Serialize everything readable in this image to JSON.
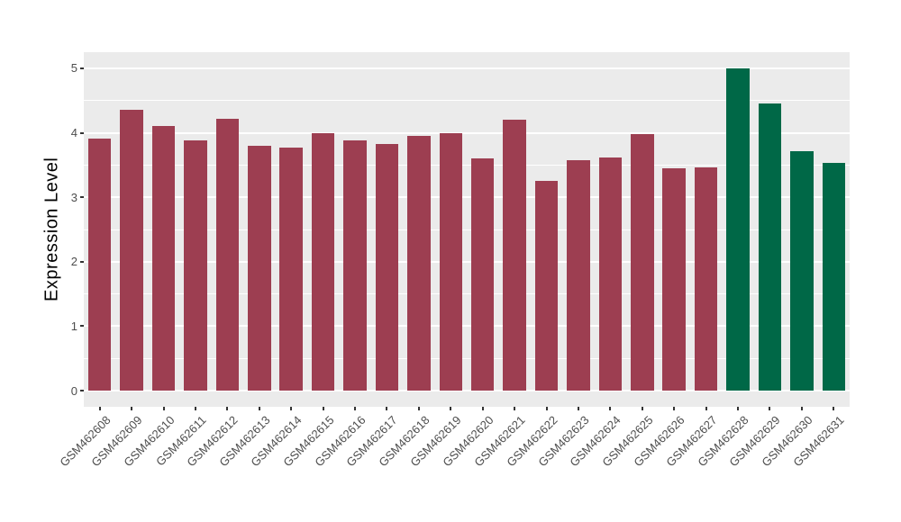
{
  "chart_data": {
    "type": "bar",
    "title": "",
    "xlabel": "",
    "ylabel": "Expression Level",
    "ylim": [
      0,
      5
    ],
    "yticks": [
      0,
      1,
      2,
      3,
      4,
      5
    ],
    "legend_position": "none",
    "grid": "white major and minor gridlines on gray panel",
    "categories": [
      "GSM462608",
      "GSM462609",
      "GSM462610",
      "GSM462611",
      "GSM462612",
      "GSM462613",
      "GSM462614",
      "GSM462615",
      "GSM462616",
      "GSM462617",
      "GSM462618",
      "GSM462619",
      "GSM462620",
      "GSM462621",
      "GSM462622",
      "GSM462623",
      "GSM462624",
      "GSM462625",
      "GSM462626",
      "GSM462627",
      "GSM462628",
      "GSM462629",
      "GSM462630",
      "GSM462631"
    ],
    "values": [
      3.91,
      4.36,
      4.11,
      3.88,
      4.22,
      3.8,
      3.77,
      3.99,
      3.88,
      3.82,
      3.95,
      4.0,
      3.6,
      4.2,
      3.25,
      3.57,
      3.62,
      3.98,
      3.45,
      3.47,
      5.0,
      4.46,
      3.71,
      3.53
    ],
    "bar_colors": [
      "#9D3E51",
      "#9D3E51",
      "#9D3E51",
      "#9D3E51",
      "#9D3E51",
      "#9D3E51",
      "#9D3E51",
      "#9D3E51",
      "#9D3E51",
      "#9D3E51",
      "#9D3E51",
      "#9D3E51",
      "#9D3E51",
      "#9D3E51",
      "#9D3E51",
      "#9D3E51",
      "#9D3E51",
      "#9D3E51",
      "#9D3E51",
      "#9D3E51",
      "#006847",
      "#006847",
      "#006847",
      "#006847"
    ],
    "colors": {
      "bar_red": "#9D3E51",
      "bar_green": "#006847",
      "panel_background": "#EBEBEB",
      "gridline": "#FFFFFF",
      "axis_text": "#4D4D4D",
      "tick_mark": "#333333",
      "figure_background": "#FFFFFF"
    }
  }
}
